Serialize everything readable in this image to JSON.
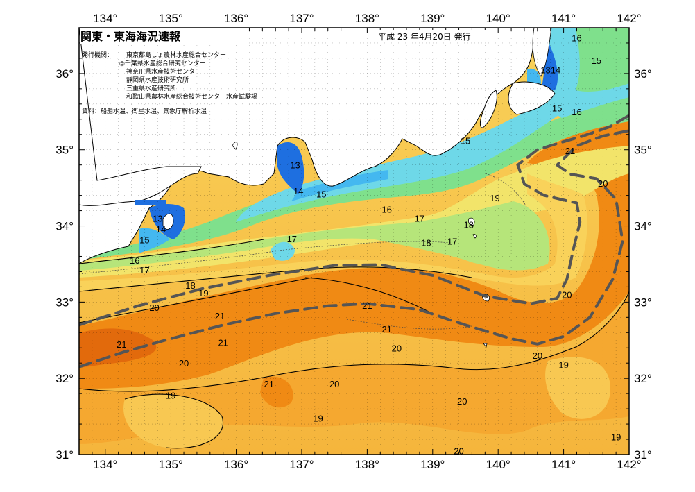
{
  "header": {
    "title": "関東・東海海況速報",
    "date": "平成 23 年4月20日 発行"
  },
  "publisher": {
    "label": "発行機関：",
    "orgs": [
      "東京都島しょ農林水産総合センター",
      "◎千葉県水産総合研究センター",
      "神奈川県水産技術センター",
      "静岡県水産技術研究所",
      "三重県水産研究所",
      "和歌山県農林水産総合技術センター水産試験場"
    ],
    "sources": "資料：船舶水温、衛星水温、気象庁解析水温"
  },
  "axes": {
    "lon_top": [
      "134°",
      "135°",
      "136°",
      "137°",
      "138°",
      "139°",
      "140°",
      "141°",
      "142°"
    ],
    "lon_bottom": [
      "134°",
      "135°",
      "136°",
      "137°",
      "138°",
      "139°",
      "140°",
      "141°",
      "142°"
    ],
    "lat_left": [
      "36°",
      "35°",
      "34°",
      "33°",
      "32°",
      "31°"
    ],
    "lat_right": [
      "36°",
      "35°",
      "34°",
      "33°",
      "32°",
      "31°"
    ]
  },
  "map_data": {
    "lon_range": [
      133.6,
      142.0
    ],
    "lat_range": [
      31.0,
      36.6
    ],
    "isotherm_labels": [
      {
        "t": "16",
        "lon": 141.2,
        "lat": 36.47
      },
      {
        "t": "15",
        "lon": 141.5,
        "lat": 36.17
      },
      {
        "t": "1314",
        "lon": 140.8,
        "lat": 36.05
      },
      {
        "t": "15",
        "lon": 140.9,
        "lat": 35.55
      },
      {
        "t": "16",
        "lon": 141.2,
        "lat": 35.5
      },
      {
        "t": "15",
        "lon": 139.5,
        "lat": 35.12
      },
      {
        "t": "21",
        "lon": 141.1,
        "lat": 34.99
      },
      {
        "t": "13",
        "lon": 136.9,
        "lat": 34.8
      },
      {
        "t": "14",
        "lon": 136.95,
        "lat": 34.46
      },
      {
        "t": "15",
        "lon": 137.3,
        "lat": 34.42
      },
      {
        "t": "20",
        "lon": 141.6,
        "lat": 34.56
      },
      {
        "t": "19",
        "lon": 139.95,
        "lat": 34.37
      },
      {
        "t": "16",
        "lon": 138.3,
        "lat": 34.22
      },
      {
        "t": "17",
        "lon": 138.8,
        "lat": 34.1
      },
      {
        "t": "18",
        "lon": 139.55,
        "lat": 34.02
      },
      {
        "t": "13",
        "lon": 134.8,
        "lat": 34.1
      },
      {
        "t": "14",
        "lon": 134.85,
        "lat": 33.96
      },
      {
        "t": "15",
        "lon": 134.6,
        "lat": 33.82
      },
      {
        "t": "17",
        "lon": 136.85,
        "lat": 33.83
      },
      {
        "t": "18",
        "lon": 138.9,
        "lat": 33.78
      },
      {
        "t": "17",
        "lon": 139.3,
        "lat": 33.8
      },
      {
        "t": "16",
        "lon": 134.45,
        "lat": 33.55
      },
      {
        "t": "17",
        "lon": 134.6,
        "lat": 33.42
      },
      {
        "t": "18",
        "lon": 135.3,
        "lat": 33.22
      },
      {
        "t": "19",
        "lon": 135.5,
        "lat": 33.12
      },
      {
        "t": "20",
        "lon": 141.05,
        "lat": 33.1
      },
      {
        "t": "20",
        "lon": 134.75,
        "lat": 32.93
      },
      {
        "t": "21",
        "lon": 138.0,
        "lat": 32.96
      },
      {
        "t": "21",
        "lon": 135.75,
        "lat": 32.82
      },
      {
        "t": "21",
        "lon": 138.3,
        "lat": 32.65
      },
      {
        "t": "21",
        "lon": 134.25,
        "lat": 32.45
      },
      {
        "t": "21",
        "lon": 135.8,
        "lat": 32.47
      },
      {
        "t": "20",
        "lon": 138.45,
        "lat": 32.4
      },
      {
        "t": "20",
        "lon": 140.6,
        "lat": 32.3
      },
      {
        "t": "19",
        "lon": 141.0,
        "lat": 32.18
      },
      {
        "t": "20",
        "lon": 135.2,
        "lat": 32.2
      },
      {
        "t": "21",
        "lon": 136.5,
        "lat": 31.93
      },
      {
        "t": "20",
        "lon": 137.5,
        "lat": 31.93
      },
      {
        "t": "19",
        "lon": 135.0,
        "lat": 31.78
      },
      {
        "t": "20",
        "lon": 139.45,
        "lat": 31.7
      },
      {
        "t": "19",
        "lon": 137.25,
        "lat": 31.48
      },
      {
        "t": "19",
        "lon": 141.8,
        "lat": 31.23
      },
      {
        "t": "20",
        "lon": 139.4,
        "lat": 31.05
      }
    ],
    "kuroshio_axis": [
      [
        [
          133.6,
          32.7
        ],
        [
          134.5,
          32.95
        ],
        [
          135.5,
          33.18
        ],
        [
          136.5,
          33.35
        ],
        [
          137.5,
          33.48
        ],
        [
          138.2,
          33.49
        ],
        [
          139.0,
          33.35
        ],
        [
          139.8,
          33.08
        ],
        [
          140.5,
          32.98
        ],
        [
          140.9,
          33.05
        ],
        [
          141.05,
          33.3
        ],
        [
          141.15,
          33.7
        ],
        [
          141.25,
          34.05
        ],
        [
          141.2,
          34.3
        ],
        [
          140.7,
          34.4
        ],
        [
          140.4,
          34.55
        ],
        [
          140.3,
          34.8
        ],
        [
          140.6,
          35.0
        ],
        [
          140.9,
          35.08
        ],
        [
          141.3,
          35.18
        ],
        [
          141.7,
          35.3
        ],
        [
          142.0,
          35.45
        ]
      ],
      [
        [
          133.6,
          32.15
        ],
        [
          134.3,
          32.35
        ],
        [
          135.0,
          32.52
        ],
        [
          135.8,
          32.7
        ],
        [
          136.6,
          32.85
        ],
        [
          137.4,
          32.95
        ],
        [
          138.0,
          32.98
        ],
        [
          138.8,
          32.9
        ],
        [
          139.5,
          32.7
        ],
        [
          140.2,
          32.52
        ],
        [
          140.6,
          32.45
        ],
        [
          141.0,
          32.55
        ],
        [
          141.4,
          32.8
        ],
        [
          141.75,
          33.3
        ],
        [
          141.9,
          33.8
        ],
        [
          141.8,
          34.35
        ],
        [
          141.5,
          34.62
        ],
        [
          141.1,
          34.68
        ],
        [
          140.9,
          34.8
        ],
        [
          141.2,
          35.05
        ],
        [
          141.6,
          35.18
        ],
        [
          142.0,
          35.25
        ]
      ]
    ],
    "colors": {
      "warm_21": "#f08a14",
      "warm_20": "#f5a830",
      "warm_19": "#f9d25a",
      "temp_18": "#f2e46a",
      "temp_17": "#b6e57a",
      "temp_16": "#7fe08c",
      "cool_15": "#6ed8e8",
      "cool_14": "#44b8f0",
      "cold_13": "#1e6fe0",
      "land": "#ffffff",
      "axis_line": "#555555"
    }
  }
}
